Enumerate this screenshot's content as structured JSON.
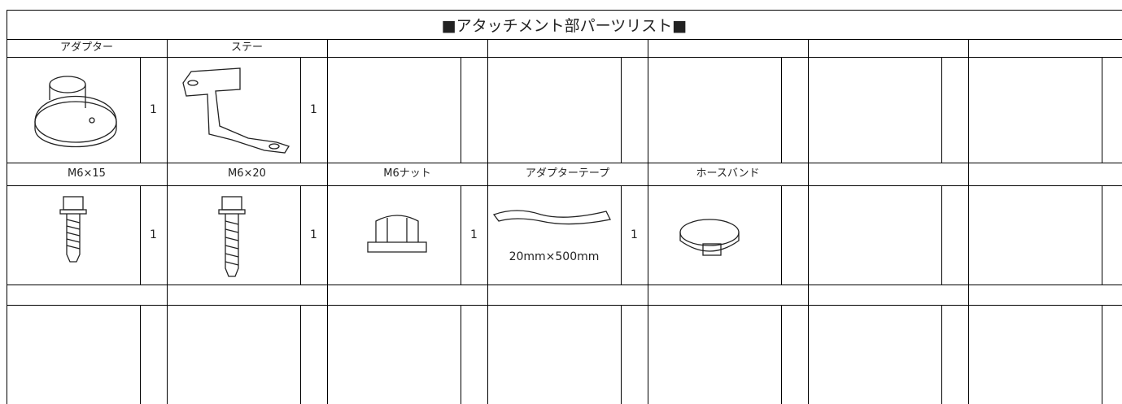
{
  "title": "■アタッチメント部パーツリスト■",
  "rows": [
    {
      "items": [
        {
          "name": "アダプター",
          "quantity": 1
        },
        {
          "name": "ステー",
          "quantity": 1
        }
      ]
    },
    {
      "items": [
        {
          "name": "M6×15",
          "quantity": 1
        },
        {
          "name": "M6×20",
          "quantity": 1
        },
        {
          "name": "M6ナット",
          "quantity": 1
        },
        {
          "name": "アダプターテープ",
          "quantity": 1,
          "note": "20mm×500mm"
        },
        {
          "name": "ホースバンド"
        }
      ]
    },
    {
      "items": []
    }
  ]
}
